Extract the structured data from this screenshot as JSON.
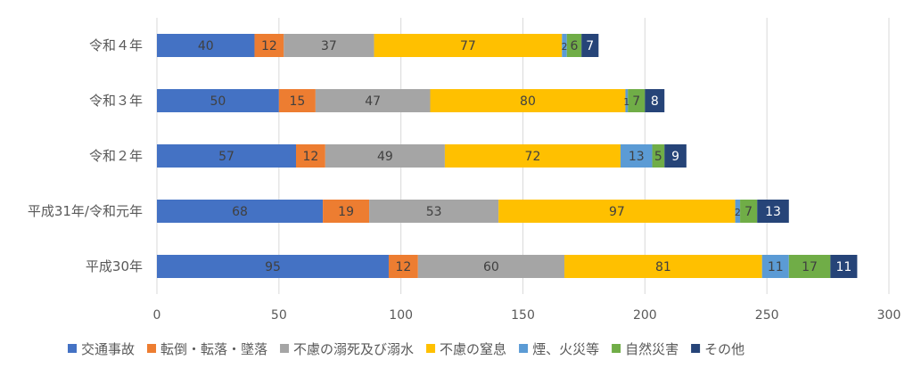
{
  "chart_data": {
    "type": "bar",
    "orientation": "horizontal",
    "stacked": true,
    "title": "",
    "xlabel": "",
    "ylabel": "",
    "categories": [
      "令和４年",
      "令和３年",
      "令和２年",
      "平成31年/令和元年",
      "平成30年"
    ],
    "xlim": [
      0,
      300
    ],
    "xticks": [
      0,
      50,
      100,
      150,
      200,
      250,
      300
    ],
    "grid": "vertical",
    "legend_position": "bottom",
    "series": [
      {
        "name": "交通事故",
        "color": "#4472C4",
        "label_color": "#404040",
        "values": [
          40,
          50,
          57,
          68,
          95
        ]
      },
      {
        "name": "転倒・転落・墜落",
        "color": "#ED7D31",
        "label_color": "#404040",
        "values": [
          12,
          15,
          12,
          19,
          12
        ]
      },
      {
        "name": "不慮の溺死及び溺水",
        "color": "#A5A5A5",
        "label_color": "#404040",
        "values": [
          37,
          47,
          49,
          53,
          60
        ]
      },
      {
        "name": "不慮の窒息",
        "color": "#FFC000",
        "label_color": "#404040",
        "values": [
          77,
          80,
          72,
          97,
          81
        ]
      },
      {
        "name": "煙、火災等",
        "color": "#5B9BD5",
        "label_color": "#404040",
        "values": [
          2,
          1,
          13,
          2,
          11
        ]
      },
      {
        "name": "自然災害",
        "color": "#70AD47",
        "label_color": "#404040",
        "values": [
          6,
          7,
          5,
          7,
          17
        ]
      },
      {
        "name": "その他",
        "color": "#264478",
        "label_color": "#ffffff",
        "values": [
          7,
          8,
          9,
          13,
          11
        ]
      }
    ]
  }
}
